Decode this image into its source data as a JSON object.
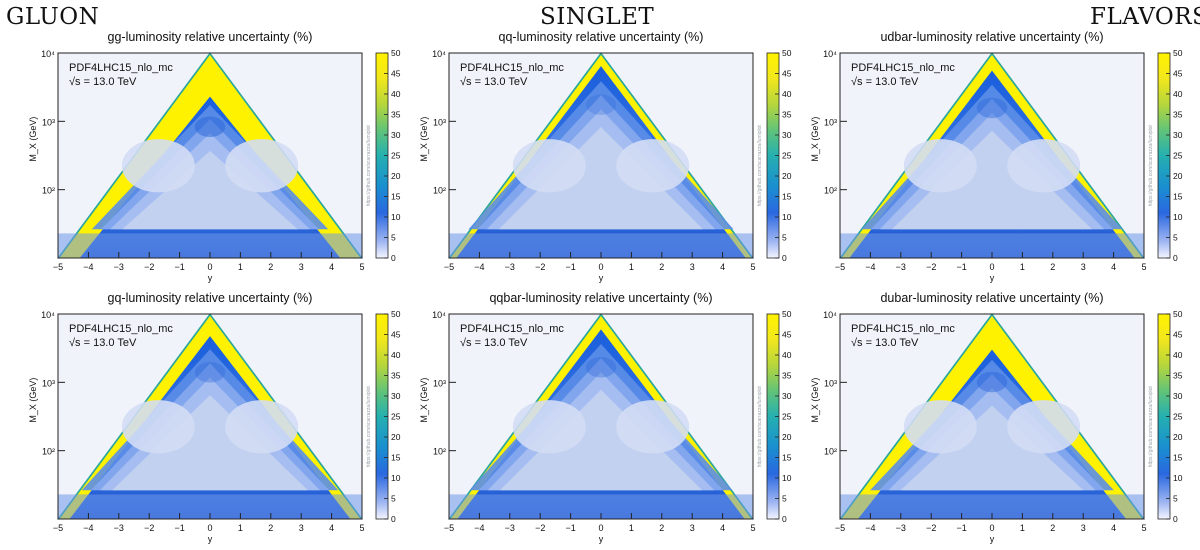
{
  "headers": {
    "left": "GLUON",
    "center": "SINGLET",
    "right": "FLAVORS"
  },
  "colors": {
    "plot_background": "#f1f3fa",
    "blue_dark": "#1a5edc",
    "blue_light": "#c7d3f0",
    "yellow": "#fff200",
    "teal": "#2ba79d"
  },
  "chart_data": [
    {
      "type": "heatmap",
      "title": "gg-luminosity relative uncertainty (%)",
      "label_pdf": "PDF4LHC15_nlo_mc",
      "label_energy": "√s = 13.0 TeV",
      "xlabel": "y",
      "ylabel": "M_X (GeV)",
      "xlim": [
        -5,
        5
      ],
      "ylog_range": [
        10,
        10000
      ],
      "x_ticks": [
        "−5",
        "−4",
        "−3",
        "−2",
        "−1",
        "0",
        "1",
        "2",
        "3",
        "4",
        "5"
      ],
      "y_ticks": [
        "10²",
        "10³",
        "10⁴"
      ],
      "colorbar_ticks": [
        "0",
        "5",
        "10",
        "15",
        "20",
        "25",
        "30",
        "35",
        "40",
        "45",
        "50"
      ],
      "zlim": [
        0,
        50
      ],
      "watermark": "https://github.com/scarrazza/lumiplot",
      "yellow_band_width": 0.35,
      "interior_level": 0.5
    },
    {
      "type": "heatmap",
      "title": "qq-luminosity relative uncertainty (%)",
      "label_pdf": "PDF4LHC15_nlo_mc",
      "label_energy": "√s = 13.0 TeV",
      "xlabel": "y",
      "ylabel": "M_X (GeV)",
      "xlim": [
        -5,
        5
      ],
      "ylog_range": [
        10,
        10000
      ],
      "x_ticks": [
        "−5",
        "−4",
        "−3",
        "−2",
        "−1",
        "0",
        "1",
        "2",
        "3",
        "4",
        "5"
      ],
      "y_ticks": [
        "10²",
        "10³",
        "10⁴"
      ],
      "colorbar_ticks": [
        "0",
        "5",
        "10",
        "15",
        "20",
        "25",
        "30",
        "35",
        "40",
        "45",
        "50"
      ],
      "zlim": [
        0,
        50
      ],
      "watermark": "https://github.com/scarrazza/lumiplot",
      "yellow_band_width": 0.08,
      "interior_level": 0.25
    },
    {
      "type": "heatmap",
      "title": "udbar-luminosity relative uncertainty (%)",
      "label_pdf": "PDF4LHC15_nlo_mc",
      "label_energy": "√s = 13.0 TeV",
      "xlabel": "y",
      "ylabel": "M_X (GeV)",
      "xlim": [
        -5,
        5
      ],
      "ylog_range": [
        10,
        10000
      ],
      "x_ticks": [
        "−5",
        "−4",
        "−3",
        "−2",
        "−1",
        "0",
        "1",
        "2",
        "3",
        "4",
        "5"
      ],
      "y_ticks": [
        "10²",
        "10³",
        "10⁴"
      ],
      "colorbar_ticks": [
        "0",
        "5",
        "10",
        "15",
        "20",
        "25",
        "30",
        "35",
        "40",
        "45",
        "50"
      ],
      "zlim": [
        0,
        50
      ],
      "watermark": "https://github.com/scarrazza/lumiplot",
      "yellow_band_width": 0.12,
      "interior_level": 0.4
    },
    {
      "type": "heatmap",
      "title": "gq-luminosity relative uncertainty (%)",
      "label_pdf": "PDF4LHC15_nlo_mc",
      "label_energy": "√s = 13.0 TeV",
      "xlabel": "y",
      "ylabel": "M_X (GeV)",
      "xlim": [
        -5,
        5
      ],
      "ylog_range": [
        10,
        10000
      ],
      "x_ticks": [
        "−5",
        "−4",
        "−3",
        "−2",
        "−1",
        "0",
        "1",
        "2",
        "3",
        "4",
        "5"
      ],
      "y_ticks": [
        "10²",
        "10³",
        "10⁴"
      ],
      "colorbar_ticks": [
        "0",
        "5",
        "10",
        "15",
        "20",
        "25",
        "30",
        "35",
        "40",
        "45",
        "50"
      ],
      "zlim": [
        0,
        50
      ],
      "watermark": "https://github.com/scarrazza/lumiplot",
      "yellow_band_width": 0.16,
      "interior_level": 0.35
    },
    {
      "type": "heatmap",
      "title": "qqbar-luminosity relative uncertainty (%)",
      "label_pdf": "PDF4LHC15_nlo_mc",
      "label_energy": "√s = 13.0 TeV",
      "xlabel": "y",
      "ylabel": "M_X (GeV)",
      "xlim": [
        -5,
        5
      ],
      "ylog_range": [
        10,
        10000
      ],
      "x_ticks": [
        "−5",
        "−4",
        "−3",
        "−2",
        "−1",
        "0",
        "1",
        "2",
        "3",
        "4",
        "5"
      ],
      "y_ticks": [
        "10²",
        "10³",
        "10⁴"
      ],
      "colorbar_ticks": [
        "0",
        "5",
        "10",
        "15",
        "20",
        "25",
        "30",
        "35",
        "40",
        "45",
        "50"
      ],
      "zlim": [
        0,
        50
      ],
      "watermark": "https://github.com/scarrazza/lumiplot",
      "yellow_band_width": 0.1,
      "interior_level": 0.35
    },
    {
      "type": "heatmap",
      "title": "dubar-luminosity relative uncertainty (%)",
      "label_pdf": "PDF4LHC15_nlo_mc",
      "label_energy": "√s = 13.0 TeV",
      "xlabel": "y",
      "ylabel": "M_X (GeV)",
      "xlim": [
        -5,
        5
      ],
      "ylog_range": [
        10,
        10000
      ],
      "x_ticks": [
        "−5",
        "−4",
        "−3",
        "−2",
        "−1",
        "0",
        "1",
        "2",
        "3",
        "4",
        "5"
      ],
      "y_ticks": [
        "10²",
        "10³",
        "10⁴"
      ],
      "colorbar_ticks": [
        "0",
        "5",
        "10",
        "15",
        "20",
        "25",
        "30",
        "35",
        "40",
        "45",
        "50"
      ],
      "zlim": [
        0,
        50
      ],
      "watermark": "https://github.com/scarrazza/lumiplot",
      "yellow_band_width": 0.28,
      "interior_level": 0.45
    }
  ]
}
